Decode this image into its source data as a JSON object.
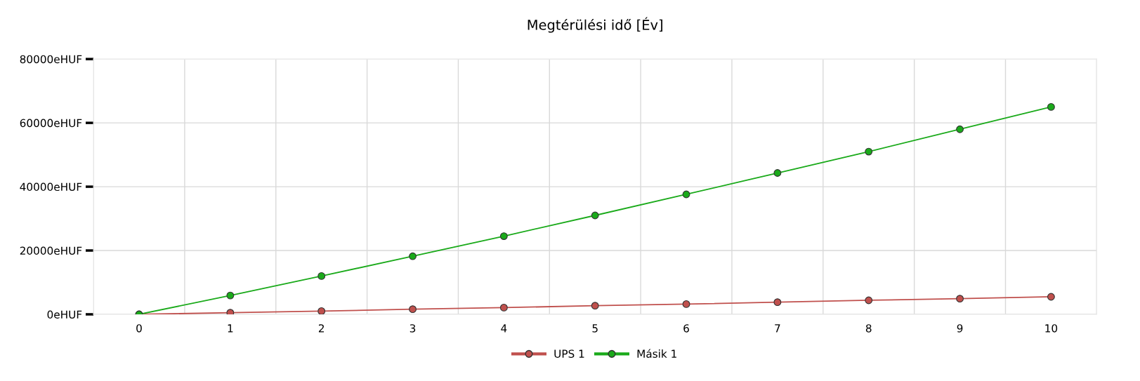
{
  "chart_data": {
    "type": "line",
    "title": "Megtérülési idő [Év]",
    "categories": [
      "0",
      "1",
      "2",
      "3",
      "4",
      "5",
      "6",
      "7",
      "8",
      "9",
      "10"
    ],
    "series": [
      {
        "name": "UPS 1",
        "color": "#c0504d",
        "values": [
          0,
          500,
          1000,
          1600,
          2100,
          2700,
          3200,
          3800,
          4400,
          4900,
          5500
        ]
      },
      {
        "name": "Másik 1",
        "color": "#1aaa1a",
        "values": [
          0,
          5900,
          12000,
          18200,
          24500,
          31000,
          37600,
          44300,
          51000,
          58000,
          65000
        ]
      }
    ],
    "ylim": [
      0,
      80000
    ],
    "yticks": [
      {
        "value": 0,
        "label": "0eHUF"
      },
      {
        "value": 20000,
        "label": "20000eHUF"
      },
      {
        "value": 40000,
        "label": "40000eHUF"
      },
      {
        "value": 60000,
        "label": "60000eHUF"
      },
      {
        "value": 80000,
        "label": "80000eHUF"
      }
    ],
    "grid": true,
    "legend": "bottom",
    "marker": "circle",
    "line_style": "solid"
  }
}
